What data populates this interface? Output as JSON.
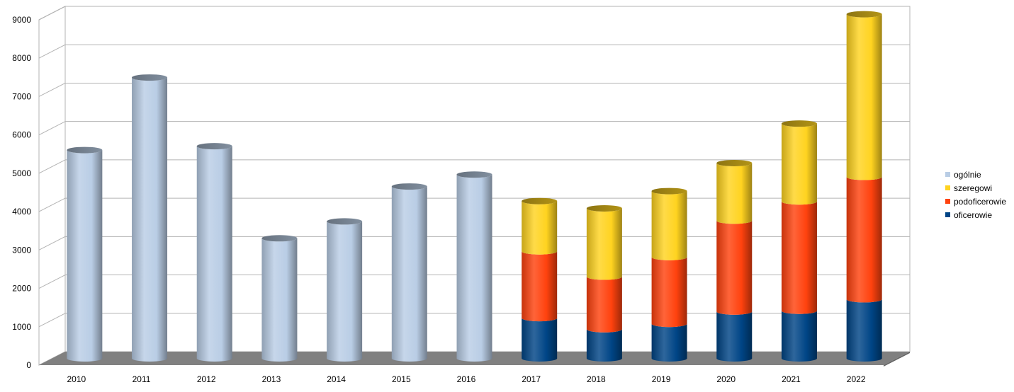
{
  "chart_data": {
    "type": "bar",
    "stacked": true,
    "style": "3d-cylinder",
    "categories": [
      "2010",
      "2011",
      "2012",
      "2013",
      "2014",
      "2015",
      "2016",
      "2017",
      "2018",
      "2019",
      "2020",
      "2021",
      "2022"
    ],
    "series": [
      {
        "name": "ogólnie",
        "color": "#b9cde5",
        "values": [
          5430,
          7320,
          5530,
          3130,
          3570,
          4480,
          4790,
          null,
          null,
          null,
          null,
          null,
          null
        ]
      },
      {
        "name": "oficerowie",
        "color": "#004586",
        "values": [
          null,
          null,
          null,
          null,
          null,
          null,
          null,
          1050,
          760,
          900,
          1220,
          1240,
          1540
        ]
      },
      {
        "name": "podoficerowie",
        "color": "#ff420e",
        "values": [
          null,
          null,
          null,
          null,
          null,
          null,
          null,
          1740,
          1370,
          1740,
          2370,
          2850,
          3190
        ]
      },
      {
        "name": "szeregowi",
        "color": "#ffd320",
        "values": [
          null,
          null,
          null,
          null,
          null,
          null,
          null,
          1310,
          1780,
          1720,
          1500,
          2030,
          4240
        ]
      }
    ],
    "y_ticks": [
      "0",
      "1000",
      "2000",
      "3000",
      "4000",
      "5000",
      "6000",
      "7000",
      "8000",
      "9000"
    ],
    "ylim": [
      0,
      9000
    ],
    "grid": true,
    "legend_position": "right",
    "legend_order": [
      "ogólnie",
      "szeregowi",
      "podoficerowie",
      "oficerowie"
    ],
    "title": "",
    "xlabel": "",
    "ylabel": ""
  }
}
